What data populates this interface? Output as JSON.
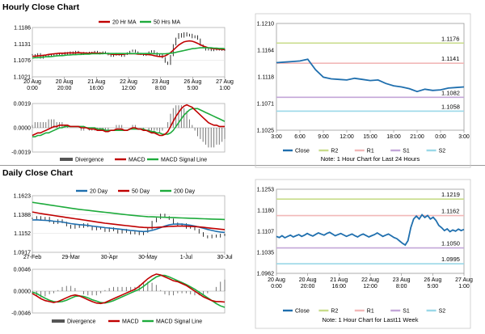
{
  "sections": {
    "hourly_title": "Hourly Close Chart",
    "daily_title": "Daily Close Chart"
  },
  "colors": {
    "ma_short": "#c00000",
    "ma_long": "#1eab3c",
    "macd_signal": "#1eab3c",
    "macd": "#c00000",
    "close_line": "#1f6fae",
    "r2": "#c8dc8a",
    "r1": "#f2b8b8",
    "s1": "#c3a6d8",
    "s2": "#9ad8e8",
    "price": "#000000",
    "divergence": "#777777"
  },
  "chart_data": [
    {
      "id": "hourly_price",
      "type": "line",
      "legend": [
        "20 Hr MA",
        "50 Hrs MA"
      ],
      "y_ticks": [
        "1.1186",
        "1.1131",
        "1.1076",
        "1.1021"
      ],
      "ylim": [
        1.1021,
        1.1186
      ],
      "x_ticks": [
        "20 Aug\n0:00",
        "20 Aug\n20:00",
        "21 Aug\n16:00",
        "22 Aug\n12:00",
        "23 Aug\n8:00",
        "26 Aug\n5:00",
        "27 Aug\n1:00"
      ],
      "series": [
        {
          "name": "Close",
          "values": [
            1.1095,
            1.109,
            1.1098,
            1.1084,
            1.1092,
            1.1088,
            1.1095,
            1.109,
            1.1097,
            1.1093,
            1.11,
            1.1094,
            1.1102,
            1.1097,
            1.1104,
            1.1099,
            1.1106,
            1.1101,
            1.1096,
            1.1102,
            1.1098,
            1.1103,
            1.11,
            1.1106,
            1.1102,
            1.1098,
            1.1104,
            1.11,
            1.1095,
            1.109,
            1.1094,
            1.1099,
            1.1094,
            1.109,
            1.1096,
            1.1101,
            1.1106,
            1.111,
            1.1104,
            1.1099,
            1.1096,
            1.1093,
            1.1099,
            1.1104,
            1.1108,
            1.1101,
            1.109,
            1.1096,
            1.1085,
            1.107,
            1.1063,
            1.1092,
            1.1128,
            1.115,
            1.1165,
            1.1154,
            1.1168,
            1.1158,
            1.1163,
            1.1152,
            1.1158,
            1.1147,
            1.1127,
            1.1119,
            1.1111,
            1.1117,
            1.1109,
            1.1115,
            1.1111,
            1.1114,
            1.111,
            1.1113
          ]
        },
        {
          "name": "20 Hr MA",
          "values": [
            1.109,
            1.109,
            1.1091,
            1.1092,
            1.1093,
            1.1094,
            1.1096,
            1.1097,
            1.1098,
            1.1099,
            1.11,
            1.11,
            1.11,
            1.1101,
            1.1101,
            1.1101,
            1.1101,
            1.1102,
            1.1101,
            1.1101,
            1.11,
            1.11,
            1.1101,
            1.1101,
            1.11,
            1.11,
            1.11,
            1.1099,
            1.1098,
            1.1097,
            1.1096,
            1.1096,
            1.1096,
            1.1096,
            1.1097,
            1.1098,
            1.1098,
            1.1098,
            1.1098,
            1.1097,
            1.1097,
            1.1097,
            1.1096,
            1.1095,
            1.1094,
            1.1092,
            1.109,
            1.1089,
            1.1089,
            1.1091,
            1.1096,
            1.1102,
            1.111,
            1.1119,
            1.1127,
            1.1133,
            1.1138,
            1.114,
            1.1141,
            1.114,
            1.1137,
            1.1133,
            1.1128,
            1.1124,
            1.1121,
            1.1118,
            1.1116,
            1.1115,
            1.1114,
            1.1113,
            1.1113,
            1.1112
          ]
        },
        {
          "name": "50 Hrs MA",
          "values": [
            1.1084,
            1.1085,
            1.1085,
            1.1086,
            1.1087,
            1.1088,
            1.1088,
            1.1089,
            1.109,
            1.1091,
            1.1092,
            1.1092,
            1.1093,
            1.1094,
            1.1094,
            1.1095,
            1.1095,
            1.1096,
            1.1096,
            1.1097,
            1.1097,
            1.1097,
            1.1098,
            1.1098,
            1.1098,
            1.1098,
            1.1099,
            1.1099,
            1.1099,
            1.1099,
            1.1099,
            1.1099,
            1.1099,
            1.1099,
            1.1099,
            1.1099,
            1.1099,
            1.1099,
            1.1099,
            1.1099,
            1.1099,
            1.1099,
            1.1099,
            1.1099,
            1.1099,
            1.1098,
            1.1098,
            1.1098,
            1.1098,
            1.1098,
            1.1099,
            1.11,
            1.1101,
            1.1103,
            1.1105,
            1.1107,
            1.1109,
            1.1111,
            1.1113,
            1.1115,
            1.1116,
            1.1117,
            1.1118,
            1.1118,
            1.1118,
            1.1118,
            1.1118,
            1.1117,
            1.1117,
            1.1116,
            1.1116,
            1.1115
          ]
        }
      ]
    },
    {
      "id": "hourly_macd",
      "type": "line",
      "legend": [
        "Divergence",
        "MACD",
        "MACD Signal Line"
      ],
      "y_ticks": [
        "0.0019",
        "0.0000",
        "-0.0019"
      ],
      "ylim": [
        -0.0019,
        0.0019
      ],
      "series": [
        {
          "name": "MACD",
          "values": [
            -0.0006,
            -0.0005,
            -0.0004,
            -0.0004,
            -0.0003,
            -0.0002,
            -0.0001,
            0.0,
            0.0001,
            0.0001,
            0.0002,
            0.0002,
            0.0002,
            0.0002,
            0.0001,
            0.0001,
            0.0001,
            0.0001,
            0.0,
            0.0,
            0.0,
            -0.0001,
            -0.0001,
            -0.0001,
            -0.0002,
            -0.0002,
            -0.0002,
            -0.0003,
            -0.0003,
            -0.0002,
            -0.0002,
            -0.0001,
            -0.0001,
            -0.0001,
            -0.0002,
            -0.0002,
            -0.0001,
            0.0,
            0.0,
            -0.0001,
            -0.0001,
            -0.0002,
            -0.0002,
            -0.0003,
            -0.0004,
            -0.0004,
            -0.0005,
            -0.0006,
            -0.0006,
            -0.0005,
            -0.0003,
            0.0001,
            0.0005,
            0.0009,
            0.0012,
            0.0015,
            0.0017,
            0.0018,
            0.0017,
            0.0016,
            0.0014,
            0.0012,
            0.001,
            0.0008,
            0.0006,
            0.0004,
            0.0003,
            0.0002,
            0.0002,
            0.0001,
            0.0001,
            0.0001
          ]
        },
        {
          "name": "MACD Signal Line",
          "values": [
            -0.0007,
            -0.0007,
            -0.0006,
            -0.0006,
            -0.0005,
            -0.0004,
            -0.0004,
            -0.0003,
            -0.0002,
            -0.0001,
            0.0,
            0.0,
            0.0001,
            0.0001,
            0.0001,
            0.0001,
            0.0001,
            0.0001,
            0.0001,
            0.0001,
            0.0,
            0.0,
            0.0,
            0.0,
            -0.0001,
            -0.0001,
            -0.0001,
            -0.0002,
            -0.0002,
            -0.0002,
            -0.0002,
            -0.0002,
            -0.0002,
            -0.0002,
            -0.0002,
            -0.0002,
            -0.0001,
            -0.0001,
            -0.0001,
            -0.0001,
            -0.0001,
            -0.0001,
            -0.0002,
            -0.0002,
            -0.0003,
            -0.0003,
            -0.0004,
            -0.0004,
            -0.0005,
            -0.0005,
            -0.0005,
            -0.0004,
            -0.0002,
            0.0001,
            0.0004,
            0.0007,
            0.001,
            0.0012,
            0.0014,
            0.0015,
            0.0015,
            0.0015,
            0.0014,
            0.0013,
            0.0012,
            0.0011,
            0.001,
            0.0009,
            0.0008,
            0.0007,
            0.0006,
            0.0005
          ]
        }
      ]
    },
    {
      "id": "hourly_levels",
      "type": "line",
      "legend": [
        "Close",
        "R2",
        "R1",
        "S1",
        "S2"
      ],
      "note": "Note: 1 Hour Chart for Last 24 Hours",
      "y_ticks": [
        "1.1210",
        "1.1164",
        "1.1118",
        "1.1071",
        "1.1025"
      ],
      "ylim": [
        1.1025,
        1.121
      ],
      "x_ticks": [
        "3:00",
        "6:00",
        "9:00",
        "12:00",
        "15:00",
        "18:00",
        "21:00",
        "0:00",
        "3:00"
      ],
      "levels": [
        {
          "name": "R2",
          "value": 1.1176,
          "label": "1.1176"
        },
        {
          "name": "R1",
          "value": 1.1141,
          "label": "1.1141"
        },
        {
          "name": "S1",
          "value": 1.1082,
          "label": "1.1082"
        },
        {
          "name": "S2",
          "value": 1.1058,
          "label": "1.1058"
        }
      ],
      "series": [
        {
          "name": "Close",
          "values": [
            1.1142,
            1.1143,
            1.1144,
            1.1145,
            1.1148,
            1.113,
            1.1117,
            1.1114,
            1.1113,
            1.1112,
            1.1115,
            1.1113,
            1.1111,
            1.1112,
            1.1106,
            1.1102,
            1.11,
            1.1097,
            1.1092,
            1.1096,
            1.1094,
            1.1095,
            1.1098,
            1.1099,
            1.11
          ]
        }
      ]
    },
    {
      "id": "daily_price",
      "type": "line",
      "legend": [
        "20 Day",
        "50 Day",
        "200 Day"
      ],
      "y_ticks": [
        "1.1623",
        "1.1388",
        "1.1152",
        "1.0917"
      ],
      "ylim": [
        1.0917,
        1.1623
      ],
      "x_ticks": [
        "27-Feb",
        "29-Mar",
        "30-Apr",
        "30-May",
        "1-Jul",
        "30-Jul"
      ],
      "series": [
        {
          "name": "Close",
          "values": [
            1.134,
            1.136,
            1.132,
            1.135,
            1.13,
            1.128,
            1.132,
            1.129,
            1.125,
            1.122,
            1.126,
            1.123,
            1.127,
            1.124,
            1.12,
            1.123,
            1.121,
            1.118,
            1.122,
            1.119,
            1.116,
            1.12,
            1.117,
            1.115,
            1.118,
            1.114,
            1.117,
            1.121,
            1.13,
            1.134,
            1.139,
            1.136,
            1.133,
            1.128,
            1.125,
            1.127,
            1.122,
            1.124,
            1.12,
            1.116,
            1.112,
            1.11,
            1.113,
            1.111,
            1.114,
            1.113
          ]
        },
        {
          "name": "20 Day",
          "values": [
            1.132,
            1.1322,
            1.1318,
            1.1315,
            1.1312,
            1.1305,
            1.13,
            1.1295,
            1.1285,
            1.1275,
            1.1268,
            1.1262,
            1.1258,
            1.1252,
            1.1245,
            1.1238,
            1.1232,
            1.1225,
            1.122,
            1.1214,
            1.1208,
            1.1202,
            1.1196,
            1.119,
            1.1186,
            1.118,
            1.1176,
            1.118,
            1.119,
            1.1205,
            1.1225,
            1.1245,
            1.126,
            1.1268,
            1.127,
            1.1268,
            1.1262,
            1.1255,
            1.1245,
            1.1232,
            1.1218,
            1.1202,
            1.119,
            1.1178,
            1.117,
            1.1165
          ]
        },
        {
          "name": "50 Day",
          "values": [
            1.142,
            1.141,
            1.14,
            1.1392,
            1.1384,
            1.1376,
            1.1368,
            1.136,
            1.1352,
            1.1344,
            1.1336,
            1.1328,
            1.132,
            1.1312,
            1.1304,
            1.1296,
            1.1288,
            1.128,
            1.1274,
            1.1268,
            1.1262,
            1.1256,
            1.125,
            1.1244,
            1.1238,
            1.1232,
            1.1228,
            1.1226,
            1.1226,
            1.1228,
            1.1232,
            1.1236,
            1.124,
            1.1242,
            1.1244,
            1.1244,
            1.1243,
            1.1241,
            1.1238,
            1.1234,
            1.1229,
            1.1223,
            1.1217,
            1.1211,
            1.1205,
            1.12
          ]
        },
        {
          "name": "200 Day",
          "values": [
            1.154,
            1.1532,
            1.1524,
            1.1516,
            1.1508,
            1.15,
            1.1492,
            1.1484,
            1.1476,
            1.1468,
            1.146,
            1.1453,
            1.1446,
            1.144,
            1.1434,
            1.1428,
            1.1422,
            1.1416,
            1.141,
            1.1404,
            1.1398,
            1.1392,
            1.1386,
            1.138,
            1.1375,
            1.137,
            1.1366,
            1.1362,
            1.136,
            1.1358,
            1.1356,
            1.1354,
            1.1352,
            1.135,
            1.1348,
            1.1346,
            1.1344,
            1.1342,
            1.134,
            1.1338,
            1.1336,
            1.1334,
            1.1332,
            1.133,
            1.1328,
            1.1326
          ]
        }
      ]
    },
    {
      "id": "daily_macd",
      "type": "line",
      "legend": [
        "Divergence",
        "MACD",
        "MACD Signal Line"
      ],
      "y_ticks": [
        "0.0046",
        "0.0000",
        "-0.0046"
      ],
      "ylim": [
        -0.0046,
        0.0046
      ],
      "series": [
        {
          "name": "MACD",
          "values": [
            -0.0005,
            -0.001,
            -0.0016,
            -0.002,
            -0.0022,
            -0.0024,
            -0.0022,
            -0.0018,
            -0.0014,
            -0.001,
            -0.0008,
            -0.001,
            -0.0014,
            -0.0018,
            -0.0022,
            -0.0025,
            -0.0026,
            -0.0024,
            -0.002,
            -0.0016,
            -0.0012,
            -0.0008,
            -0.0004,
            0.0,
            0.0004,
            0.001,
            0.0018,
            0.0026,
            0.0032,
            0.0036,
            0.0034,
            0.003,
            0.0026,
            0.0022,
            0.002,
            0.0016,
            0.0012,
            0.0006,
            0.0,
            -0.0006,
            -0.0012,
            -0.0016,
            -0.002,
            -0.0022,
            -0.0022,
            -0.0023
          ]
        },
        {
          "name": "MACD Signal Line",
          "values": [
            -0.0002,
            -0.0005,
            -0.001,
            -0.0015,
            -0.0019,
            -0.0022,
            -0.0023,
            -0.0022,
            -0.0019,
            -0.0015,
            -0.0011,
            -0.001,
            -0.0011,
            -0.0014,
            -0.0018,
            -0.0021,
            -0.0024,
            -0.0025,
            -0.0023,
            -0.002,
            -0.0016,
            -0.0012,
            -0.0008,
            -0.0004,
            0.0,
            0.0004,
            0.001,
            0.0017,
            0.0024,
            0.003,
            0.0033,
            0.0033,
            0.003,
            0.0026,
            0.0022,
            0.0018,
            0.0014,
            0.0009,
            0.0004,
            -0.0002,
            -0.0008,
            -0.0014,
            -0.002,
            -0.0026,
            -0.0031,
            -0.0034
          ]
        }
      ]
    },
    {
      "id": "daily_levels",
      "type": "line",
      "legend": [
        "Close",
        "R2",
        "R1",
        "S1",
        "S2"
      ],
      "note": "Note: 1 Hour Chart for Last11 Week",
      "y_ticks": [
        "1.1253",
        "1.1180",
        "1.1107",
        "1.1035",
        "1.0962"
      ],
      "ylim": [
        1.0962,
        1.1253
      ],
      "x_ticks": [
        "20 Aug\n0:00",
        "20 Aug\n20:00",
        "21 Aug\n16:00",
        "22 Aug\n12:00",
        "23 Aug\n8:00",
        "26 Aug\n5:00",
        "27 Aug\n1:00"
      ],
      "levels": [
        {
          "name": "R2",
          "value": 1.1219,
          "label": "1.1219"
        },
        {
          "name": "R1",
          "value": 1.1162,
          "label": "1.1162"
        },
        {
          "name": "S1",
          "value": 1.105,
          "label": "1.1050"
        },
        {
          "name": "S2",
          "value": 1.0995,
          "label": "1.0995"
        }
      ],
      "series": [
        {
          "name": "Close",
          "values": [
            1.109,
            1.1086,
            1.1092,
            1.1085,
            1.109,
            1.1094,
            1.1088,
            1.1092,
            1.1096,
            1.109,
            1.1094,
            1.11,
            1.1095,
            1.1091,
            1.1097,
            1.1102,
            1.1098,
            1.1094,
            1.11,
            1.1104,
            1.1098,
            1.1092,
            1.1096,
            1.11,
            1.1095,
            1.109,
            1.1094,
            1.1098,
            1.1092,
            1.1088,
            1.1094,
            1.1098,
            1.1093,
            1.1088,
            1.1092,
            1.1096,
            1.1102,
            1.1096,
            1.109,
            1.1094,
            1.1098,
            1.1092,
            1.1086,
            1.1082,
            1.1074,
            1.1066,
            1.106,
            1.1075,
            1.112,
            1.115,
            1.116,
            1.115,
            1.1165,
            1.1155,
            1.1162,
            1.115,
            1.1156,
            1.1145,
            1.1128,
            1.112,
            1.111,
            1.1116,
            1.1106,
            1.1112,
            1.1108,
            1.1115,
            1.111,
            1.1114
          ]
        }
      ]
    }
  ]
}
